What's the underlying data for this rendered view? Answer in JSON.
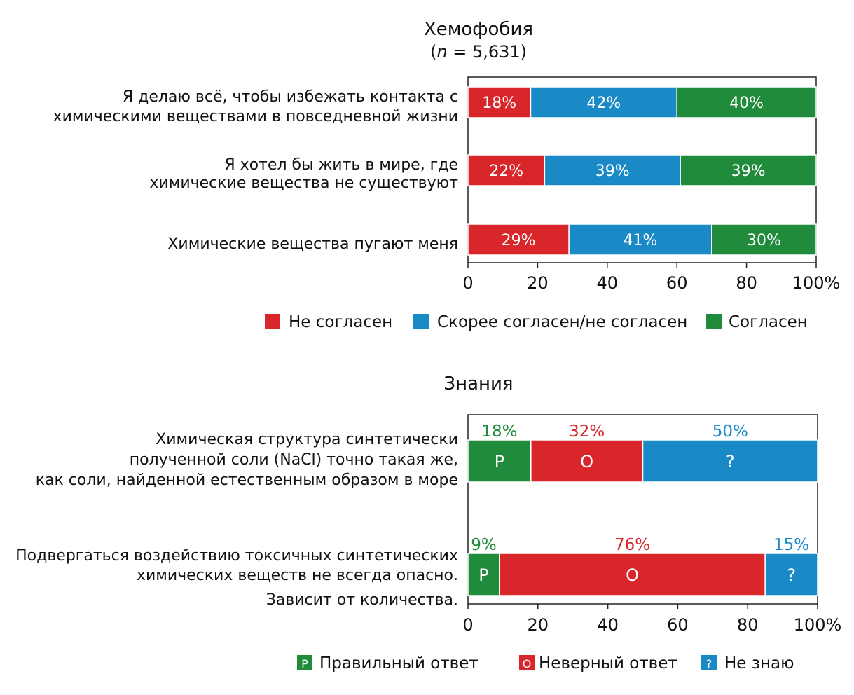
{
  "chart_data": [
    {
      "type": "bar",
      "orientation": "horizontal",
      "stacked": true,
      "title": "Хемофобия",
      "subtitle": {
        "n_label": "n",
        "n_rest": " = 5,631"
      },
      "categories": [
        "Я делаю всё, чтобы избежать контакта с химическими веществами в повседневной жизни",
        "Я хотел бы жить в мире, где химические вещества не существуют",
        "Химические вещества пугают меня"
      ],
      "category_lines": [
        [
          "Я делаю всё, чтобы избежать контакта с",
          "химическими веществами в повседневной жизни"
        ],
        [
          "Я хотел бы жить в мире, где",
          "химические вещества не существуют"
        ],
        [
          "Химические вещества пугают меня"
        ]
      ],
      "series": [
        {
          "name": "Не согласен",
          "color": "#d9262b",
          "values": [
            18,
            22,
            29
          ],
          "labels": [
            "18%",
            "22%",
            "29%"
          ]
        },
        {
          "name": "Скорее согласен/не согласен",
          "color": "#1a8ac6",
          "values": [
            42,
            39,
            41
          ],
          "labels": [
            "42%",
            "39%",
            "41%"
          ]
        },
        {
          "name": "Согласен",
          "color": "#1f8b3b",
          "values": [
            40,
            39,
            30
          ],
          "labels": [
            "40%",
            "39%",
            "30%"
          ]
        }
      ],
      "xlim": [
        0,
        100
      ],
      "xticks": [
        "0",
        "20",
        "40",
        "60",
        "80",
        "100%"
      ],
      "legend_position": "bottom"
    },
    {
      "type": "bar",
      "orientation": "horizontal",
      "stacked": true,
      "title": "Знания",
      "categories": [
        "Химическая структура синтетически полученной соли (NaCl) точно такая же, как соли, найденной естественным образом в море",
        "Подвергаться воздействию токсичных синтетических химических веществ не всегда опасно. Зависит от количества."
      ],
      "category_lines": [
        [
          "Химическая структура синтетически",
          "полученной соли (NaCl) точно такая же,",
          "как соли, найденной естественным образом в море"
        ],
        [
          "Подвергаться воздействию токсичных синтетических",
          "химических веществ не всегда опасно.",
          "Зависит от количества."
        ]
      ],
      "series": [
        {
          "name": "Правильный ответ",
          "symbol": "P",
          "color": "#1f8b3b",
          "values": [
            18,
            9
          ],
          "labels": [
            "18%",
            "9%"
          ]
        },
        {
          "name": "Неверный ответ",
          "symbol": "O",
          "color": "#d9262b",
          "values": [
            32,
            76
          ],
          "labels": [
            "32%",
            "76%"
          ]
        },
        {
          "name": "Не знаю",
          "symbol": "?",
          "color": "#1a8ac6",
          "values": [
            50,
            15
          ],
          "labels": [
            "50%",
            "15%"
          ]
        }
      ],
      "xlim": [
        0,
        100
      ],
      "xticks": [
        "0",
        "20",
        "40",
        "60",
        "80",
        "100%"
      ],
      "legend_position": "bottom"
    }
  ]
}
